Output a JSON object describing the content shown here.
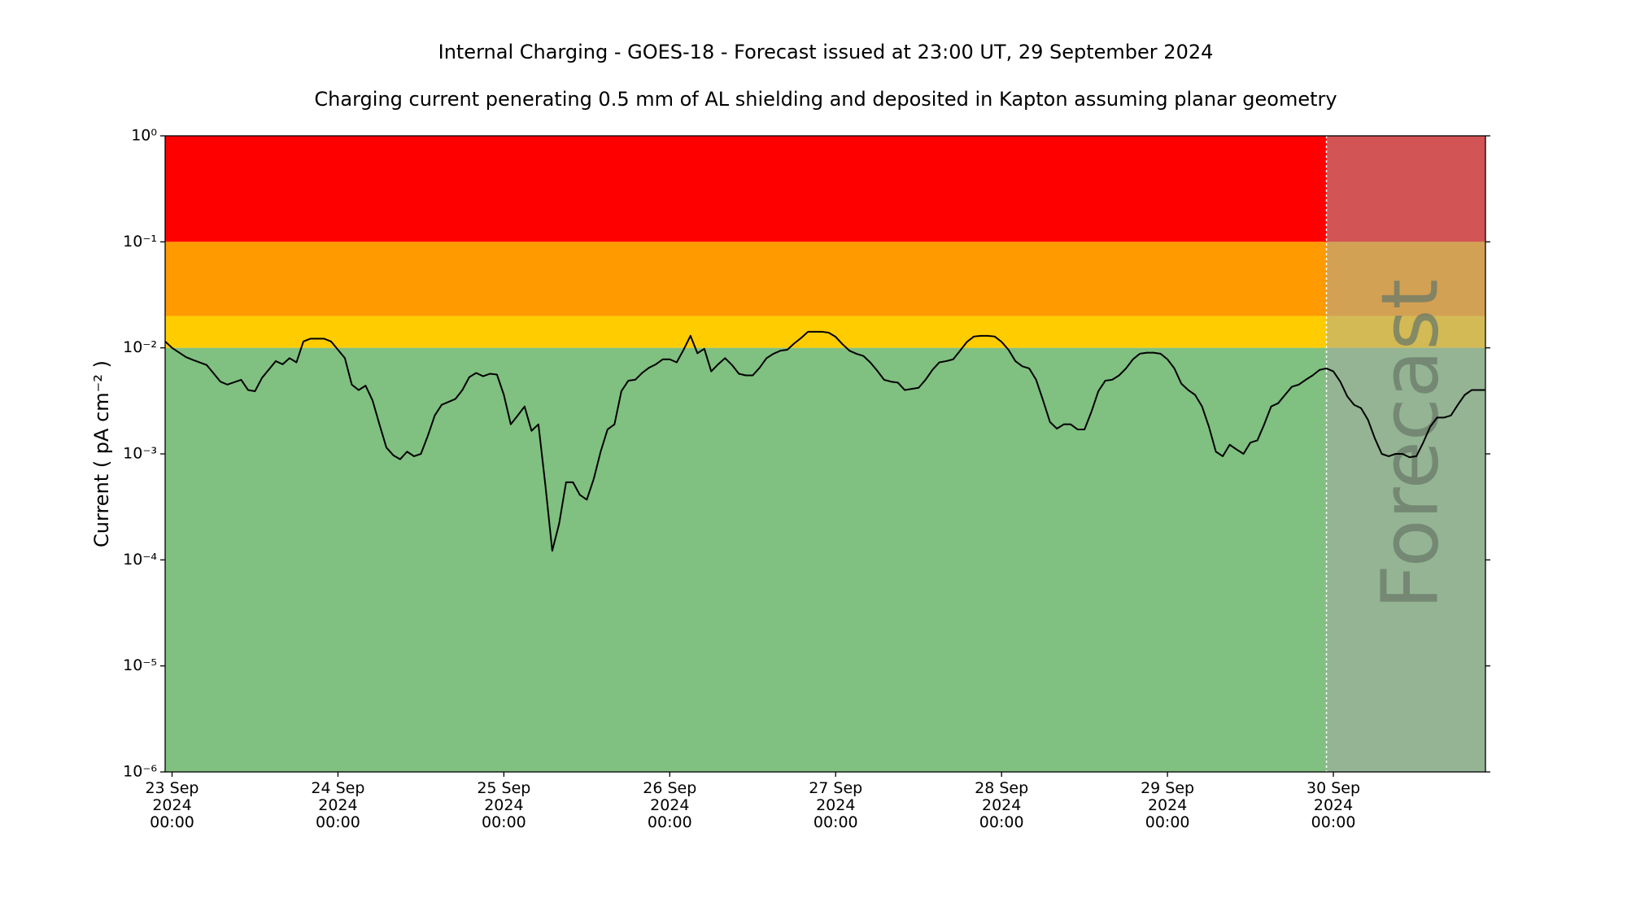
{
  "chart_data": {
    "type": "line",
    "title": "Internal Charging - GOES-18 - Forecast issued at 23:00 UT, 29 September 2024",
    "subtitle": "Charging current penerating 0.5 mm of AL shielding and deposited in Kapton assuming planar geometry",
    "y_label": "Current ( pA cm⁻² )",
    "annotation": "Forecast",
    "yscale": "log",
    "ylim": [
      1e-06,
      1
    ],
    "yticks": [
      {
        "value": 1e-06,
        "label": "10⁻⁶"
      },
      {
        "value": 1e-05,
        "label": "10⁻⁵"
      },
      {
        "value": 0.0001,
        "label": "10⁻⁴"
      },
      {
        "value": 0.001,
        "label": "10⁻³"
      },
      {
        "value": 0.01,
        "label": "10⁻²"
      },
      {
        "value": 0.1,
        "label": "10⁻¹"
      },
      {
        "value": 1,
        "label": "10⁰"
      }
    ],
    "xlim": [
      "2024-09-22 23:00",
      "2024-09-30 22:00"
    ],
    "xticks": [
      {
        "value": "2024-09-23 00:00",
        "label": "23 Sep\n2024\n00:00"
      },
      {
        "value": "2024-09-24 00:00",
        "label": "24 Sep\n2024\n00:00"
      },
      {
        "value": "2024-09-25 00:00",
        "label": "25 Sep\n2024\n00:00"
      },
      {
        "value": "2024-09-26 00:00",
        "label": "26 Sep\n2024\n00:00"
      },
      {
        "value": "2024-09-27 00:00",
        "label": "27 Sep\n2024\n00:00"
      },
      {
        "value": "2024-09-28 00:00",
        "label": "28 Sep\n2024\n00:00"
      },
      {
        "value": "2024-09-29 00:00",
        "label": "29 Sep\n2024\n00:00"
      },
      {
        "value": "2024-09-30 00:00",
        "label": "30 Sep\n2024\n00:00"
      }
    ],
    "bands": [
      {
        "range": [
          0.1,
          1
        ],
        "color": "#ff0000"
      },
      {
        "range": [
          0.02,
          0.1
        ],
        "color": "#ff9a00"
      },
      {
        "range": [
          0.01,
          0.02
        ],
        "color": "#ffcc00"
      },
      {
        "range": [
          1e-06,
          0.01
        ],
        "color": "#80c080"
      }
    ],
    "forecast_start": "2024-09-29 23:00",
    "forecast_shade": "#a8a8a8",
    "color": "#000000",
    "x": [
      "2024-09-22 23:00",
      "2024-09-23 00:00",
      "2024-09-23 02:00",
      "2024-09-23 03:00",
      "2024-09-23 05:00",
      "2024-09-23 07:00",
      "2024-09-23 08:00",
      "2024-09-23 10:00",
      "2024-09-23 11:00",
      "2024-09-23 12:00",
      "2024-09-23 13:00",
      "2024-09-23 15:00",
      "2024-09-23 16:00",
      "2024-09-23 17:00",
      "2024-09-23 18:00",
      "2024-09-23 19:00",
      "2024-09-23 20:00",
      "2024-09-23 22:00",
      "2024-09-23 23:00",
      "2024-09-24 01:00",
      "2024-09-24 02:00",
      "2024-09-24 03:00",
      "2024-09-24 04:00",
      "2024-09-24 05:00",
      "2024-09-24 06:00",
      "2024-09-24 07:00",
      "2024-09-24 08:00",
      "2024-09-24 09:00",
      "2024-09-24 10:00",
      "2024-09-24 11:00",
      "2024-09-24 12:00",
      "2024-09-24 13:00",
      "2024-09-24 14:00",
      "2024-09-24 15:00",
      "2024-09-24 17:00",
      "2024-09-24 18:00",
      "2024-09-24 19:00",
      "2024-09-24 20:00",
      "2024-09-24 21:00",
      "2024-09-24 22:00",
      "2024-09-24 23:00",
      "2024-09-25 00:00",
      "2024-09-25 01:00",
      "2024-09-25 02:00",
      "2024-09-25 03:00",
      "2024-09-25 04:00",
      "2024-09-25 05:00",
      "2024-09-25 06:00",
      "2024-09-25 07:00",
      "2024-09-25 08:00",
      "2024-09-25 09:00",
      "2024-09-25 10:00",
      "2024-09-25 11:00",
      "2024-09-25 12:00",
      "2024-09-25 13:00",
      "2024-09-25 14:00",
      "2024-09-25 15:00",
      "2024-09-25 16:00",
      "2024-09-25 17:00",
      "2024-09-25 18:00",
      "2024-09-25 19:00",
      "2024-09-25 20:00",
      "2024-09-25 21:00",
      "2024-09-25 22:00",
      "2024-09-25 23:00",
      "2024-09-26 00:00",
      "2024-09-26 01:00",
      "2024-09-26 02:00",
      "2024-09-26 03:00",
      "2024-09-26 04:00",
      "2024-09-26 05:00",
      "2024-09-26 06:00",
      "2024-09-26 07:00",
      "2024-09-26 08:00",
      "2024-09-26 09:00",
      "2024-09-26 10:00",
      "2024-09-26 11:00",
      "2024-09-26 12:00",
      "2024-09-26 13:00",
      "2024-09-26 14:00",
      "2024-09-26 15:00",
      "2024-09-26 16:00",
      "2024-09-26 17:00",
      "2024-09-26 18:00",
      "2024-09-26 19:00",
      "2024-09-26 20:00",
      "2024-09-26 21:00",
      "2024-09-26 22:00",
      "2024-09-26 23:00",
      "2024-09-27 00:00",
      "2024-09-27 01:00",
      "2024-09-27 02:00",
      "2024-09-27 03:00",
      "2024-09-27 04:00",
      "2024-09-27 05:00",
      "2024-09-27 06:00",
      "2024-09-27 07:00",
      "2024-09-27 08:00",
      "2024-09-27 09:00",
      "2024-09-27 10:00",
      "2024-09-27 11:00",
      "2024-09-27 12:00",
      "2024-09-27 13:00",
      "2024-09-27 14:00",
      "2024-09-27 15:00",
      "2024-09-27 16:00",
      "2024-09-27 17:00",
      "2024-09-27 18:00",
      "2024-09-27 19:00",
      "2024-09-27 20:00",
      "2024-09-27 21:00",
      "2024-09-27 22:00",
      "2024-09-27 23:00",
      "2024-09-28 00:00",
      "2024-09-28 01:00",
      "2024-09-28 02:00",
      "2024-09-28 03:00",
      "2024-09-28 04:00",
      "2024-09-28 05:00",
      "2024-09-28 06:00",
      "2024-09-28 07:00",
      "2024-09-28 08:00",
      "2024-09-28 09:00",
      "2024-09-28 10:00",
      "2024-09-28 11:00",
      "2024-09-28 12:00",
      "2024-09-28 13:00",
      "2024-09-28 14:00",
      "2024-09-28 15:00",
      "2024-09-28 16:00",
      "2024-09-28 17:00",
      "2024-09-28 18:00",
      "2024-09-28 19:00",
      "2024-09-28 20:00",
      "2024-09-28 21:00",
      "2024-09-28 22:00",
      "2024-09-28 23:00",
      "2024-09-29 00:00",
      "2024-09-29 01:00",
      "2024-09-29 02:00",
      "2024-09-29 03:00",
      "2024-09-29 04:00",
      "2024-09-29 05:00",
      "2024-09-29 06:00",
      "2024-09-29 07:00",
      "2024-09-29 08:00",
      "2024-09-29 09:00",
      "2024-09-29 10:00",
      "2024-09-29 11:00",
      "2024-09-29 12:00",
      "2024-09-29 13:00",
      "2024-09-29 14:00",
      "2024-09-29 15:00",
      "2024-09-29 16:00",
      "2024-09-29 17:00",
      "2024-09-29 18:00",
      "2024-09-29 19:00",
      "2024-09-29 20:00",
      "2024-09-29 21:00",
      "2024-09-29 22:00",
      "2024-09-29 23:00",
      "2024-09-30 00:00",
      "2024-09-30 01:00",
      "2024-09-30 02:00",
      "2024-09-30 03:00",
      "2024-09-30 04:00",
      "2024-09-30 05:00",
      "2024-09-30 06:00",
      "2024-09-30 07:00",
      "2024-09-30 08:00",
      "2024-09-30 09:00",
      "2024-09-30 10:00",
      "2024-09-30 11:00",
      "2024-09-30 12:00",
      "2024-09-30 13:00",
      "2024-09-30 14:00",
      "2024-09-30 15:00",
      "2024-09-30 16:00",
      "2024-09-30 17:00",
      "2024-09-30 18:00",
      "2024-09-30 19:00",
      "2024-09-30 20:00",
      "2024-09-30 21:00",
      "2024-09-30 22:00"
    ],
    "values": [
      0.0115,
      0.01,
      0.0082,
      0.0077,
      0.0069,
      0.0048,
      0.0045,
      0.005,
      0.004,
      0.0039,
      0.0052,
      0.0075,
      0.007,
      0.008,
      0.0073,
      0.0115,
      0.0122,
      0.0122,
      0.0115,
      0.008,
      0.0045,
      0.004,
      0.0044,
      0.0032,
      0.0019,
      0.00115,
      0.00097,
      0.00089,
      0.00105,
      0.00095,
      0.001,
      0.00148,
      0.0023,
      0.0029,
      0.0033,
      0.004,
      0.0053,
      0.0058,
      0.0054,
      0.0057,
      0.0056,
      0.0036,
      0.0019,
      0.0023,
      0.0028,
      0.00165,
      0.0019,
      0.00051,
      0.000122,
      0.00022,
      0.00054,
      0.00054,
      0.00041,
      0.00037,
      0.00058,
      0.00105,
      0.0017,
      0.0019,
      0.0039,
      0.0049,
      0.005,
      0.0058,
      0.0065,
      0.007,
      0.0078,
      0.0078,
      0.0073,
      0.0096,
      0.013,
      0.0089,
      0.0098,
      0.006,
      0.007,
      0.008,
      0.0069,
      0.0057,
      0.0055,
      0.0055,
      0.0065,
      0.008,
      0.0088,
      0.0094,
      0.0096,
      0.011,
      0.0124,
      0.0142,
      0.0142,
      0.0142,
      0.0139,
      0.0127,
      0.0108,
      0.0094,
      0.0088,
      0.0084,
      0.0073,
      0.0061,
      0.005,
      0.0048,
      0.0047,
      0.004,
      0.0041,
      0.0042,
      0.005,
      0.0062,
      0.0073,
      0.0075,
      0.0078,
      0.0094,
      0.0114,
      0.0128,
      0.013,
      0.013,
      0.0128,
      0.0114,
      0.0096,
      0.0075,
      0.0067,
      0.0064,
      0.005,
      0.0032,
      0.002,
      0.00173,
      0.0019,
      0.0019,
      0.0017,
      0.0017,
      0.0025,
      0.0039,
      0.0049,
      0.005,
      0.0055,
      0.0064,
      0.0078,
      0.0088,
      0.009,
      0.009,
      0.0088,
      0.0078,
      0.0064,
      0.0046,
      0.004,
      0.0036,
      0.0028,
      0.0018,
      0.00105,
      0.00095,
      0.00122,
      0.0011,
      0.001,
      0.00128,
      0.00134,
      0.0019,
      0.0028,
      0.003,
      0.0036,
      0.0043,
      0.0045,
      0.005,
      0.0055,
      0.0062,
      0.0064,
      0.006,
      0.0048,
      0.0035,
      0.0029,
      0.0027,
      0.0021,
      0.0014,
      0.001,
      0.00095,
      0.001,
      0.001,
      0.00093,
      0.00095,
      0.00128,
      0.0018,
      0.0022,
      0.0022,
      0.0023,
      0.0029,
      0.0036,
      0.004,
      0.004,
      0.004
    ]
  }
}
